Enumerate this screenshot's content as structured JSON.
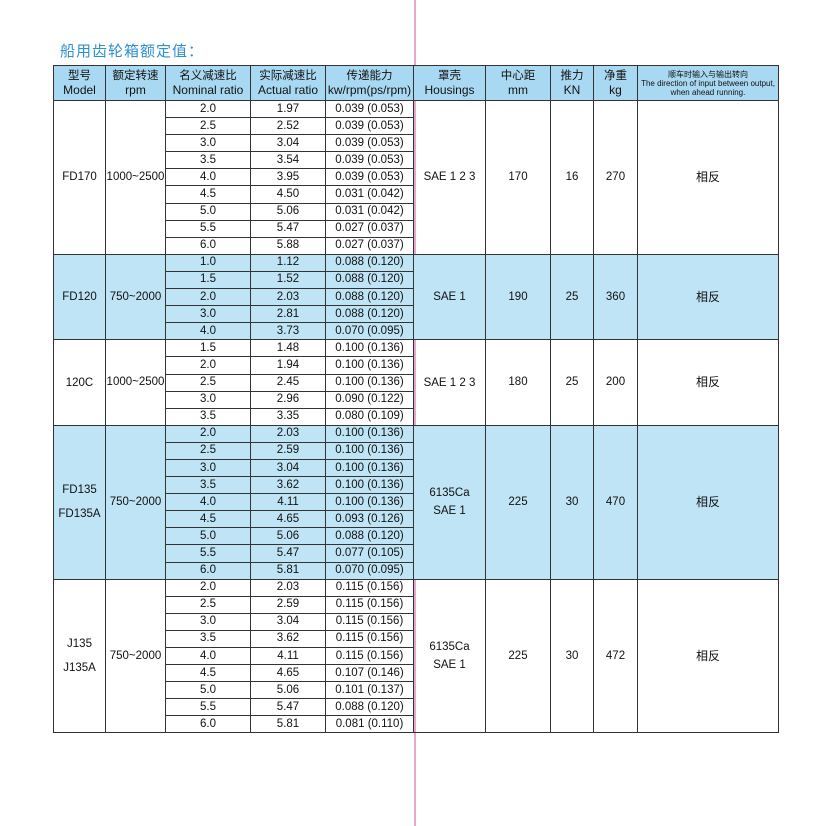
{
  "title": "船用齿轮箱额定值：",
  "headers": [
    {
      "cn": "型号",
      "en": "Model"
    },
    {
      "cn": "额定转速",
      "en": "rpm"
    },
    {
      "cn": "名义减速比",
      "en": "Nominal ratio"
    },
    {
      "cn": "实际减速比",
      "en": "Actual ratio"
    },
    {
      "cn": "传递能力",
      "en": "kw/rpm(ps/rpm)"
    },
    {
      "cn": "罩壳",
      "en": "Housings"
    },
    {
      "cn": "中心距",
      "en": "mm"
    },
    {
      "cn": "推力",
      "en": "KN"
    },
    {
      "cn": "净重",
      "en": "kg"
    },
    {
      "cn": "顺车时输入与输出转向",
      "en": "The direction of input between output, when ahead running."
    }
  ],
  "groups": [
    {
      "model": [
        "FD170"
      ],
      "rpm": "1000~2500",
      "housing": [
        "SAE 1 2 3"
      ],
      "center": "170",
      "thrust": "16",
      "weight": "270",
      "direction": "相反",
      "shaded": false,
      "rows": [
        [
          "2.0",
          "1.97",
          "0.039 (0.053)"
        ],
        [
          "2.5",
          "2.52",
          "0.039 (0.053)"
        ],
        [
          "3.0",
          "3.04",
          "0.039 (0.053)"
        ],
        [
          "3.5",
          "3.54",
          "0.039 (0.053)"
        ],
        [
          "4.0",
          "3.95",
          "0.039 (0.053)"
        ],
        [
          "4.5",
          "4.50",
          "0.031 (0.042)"
        ],
        [
          "5.0",
          "5.06",
          "0.031 (0.042)"
        ],
        [
          "5.5",
          "5.47",
          "0.027 (0.037)"
        ],
        [
          "6.0",
          "5.88",
          "0.027 (0.037)"
        ]
      ]
    },
    {
      "model": [
        "FD120"
      ],
      "rpm": "750~2000",
      "housing": [
        "SAE 1"
      ],
      "center": "190",
      "thrust": "25",
      "weight": "360",
      "direction": "相反",
      "shaded": true,
      "rows": [
        [
          "1.0",
          "1.12",
          "0.088 (0.120)"
        ],
        [
          "1.5",
          "1.52",
          "0.088 (0.120)"
        ],
        [
          "2.0",
          "2.03",
          "0.088 (0.120)"
        ],
        [
          "3.0",
          "2.81",
          "0.088 (0.120)"
        ],
        [
          "4.0",
          "3.73",
          "0.070 (0.095)"
        ]
      ]
    },
    {
      "model": [
        "120C"
      ],
      "rpm": "1000~2500",
      "housing": [
        "SAE 1 2 3"
      ],
      "center": "180",
      "thrust": "25",
      "weight": "200",
      "direction": "相反",
      "shaded": false,
      "rows": [
        [
          "1.5",
          "1.48",
          "0.100 (0.136)"
        ],
        [
          "2.0",
          "1.94",
          "0.100 (0.136)"
        ],
        [
          "2.5",
          "2.45",
          "0.100 (0.136)"
        ],
        [
          "3.0",
          "2.96",
          "0.090 (0.122)"
        ],
        [
          "3.5",
          "3.35",
          "0.080 (0.109)"
        ]
      ]
    },
    {
      "model": [
        "FD135",
        "FD135A"
      ],
      "rpm": "750~2000",
      "housing": [
        "6135Ca",
        "SAE 1"
      ],
      "center": "225",
      "thrust": "30",
      "weight": "470",
      "direction": "相反",
      "shaded": true,
      "rows": [
        [
          "2.0",
          "2.03",
          "0.100 (0.136)"
        ],
        [
          "2.5",
          "2.59",
          "0.100 (0.136)"
        ],
        [
          "3.0",
          "3.04",
          "0.100 (0.136)"
        ],
        [
          "3.5",
          "3.62",
          "0.100 (0.136)"
        ],
        [
          "4.0",
          "4.11",
          "0.100 (0.136)"
        ],
        [
          "4.5",
          "4.65",
          "0.093 (0.126)"
        ],
        [
          "5.0",
          "5.06",
          "0.088 (0.120)"
        ],
        [
          "5.5",
          "5.47",
          "0.077 (0.105)"
        ],
        [
          "6.0",
          "5.81",
          "0.070 (0.095)"
        ]
      ]
    },
    {
      "model": [
        "J135",
        "J135A"
      ],
      "rpm": "750~2000",
      "housing": [
        "6135Ca",
        "SAE 1"
      ],
      "center": "225",
      "thrust": "30",
      "weight": "472",
      "direction": "相反",
      "shaded": false,
      "rows": [
        [
          "2.0",
          "2.03",
          "0.115 (0.156)"
        ],
        [
          "2.5",
          "2.59",
          "0.115 (0.156)"
        ],
        [
          "3.0",
          "3.04",
          "0.115 (0.156)"
        ],
        [
          "3.5",
          "3.62",
          "0.115 (0.156)"
        ],
        [
          "4.0",
          "4.11",
          "0.115 (0.156)"
        ],
        [
          "4.5",
          "4.65",
          "0.107 (0.146)"
        ],
        [
          "5.0",
          "5.06",
          "0.101 (0.137)"
        ],
        [
          "5.5",
          "5.47",
          "0.088 (0.120)"
        ],
        [
          "6.0",
          "5.81",
          "0.081 (0.110)"
        ]
      ]
    }
  ]
}
